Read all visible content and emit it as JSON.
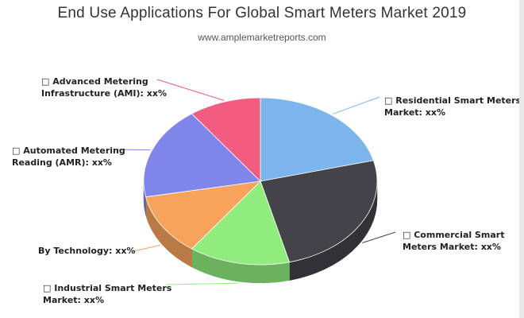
{
  "title": "End Use Applications For Global Smart Meters Market 2019",
  "subtitle": "www.amplemarketreports.com",
  "chart_data": {
    "type": "pie",
    "style": "3d",
    "title": "End Use Applications For Global Smart Meters Market 2019",
    "subtitle": "www.amplemarketreports.com",
    "slices": [
      {
        "name": "Residential Smart Meters Market",
        "label_lines": [
          "□ Residential Smart Meters",
          "Market: xx%"
        ],
        "value": 21,
        "color": "#7cb5ec"
      },
      {
        "name": "Commercial Smart Meters Market",
        "label_lines": [
          "□ Commercial Smart",
          "Meters Market: xx%"
        ],
        "value": 25,
        "color": "#434348"
      },
      {
        "name": "Industrial Smart Meters Market",
        "label_lines": [
          "□ Industrial Smart Meters",
          "Market: xx%"
        ],
        "value": 14,
        "color": "#90ed7d"
      },
      {
        "name": "By Technology",
        "label_lines": [
          "By Technology: xx%"
        ],
        "value": 12,
        "color": "#f7a35c"
      },
      {
        "name": "Automated Metering Reading (AMR)",
        "label_lines": [
          "□ Automated Metering",
          "Reading (AMR): xx%"
        ],
        "value": 18,
        "color": "#8085e9"
      },
      {
        "name": "Advanced Metering Infrastructure (AMI)",
        "label_lines": [
          "□ Advanced Metering",
          "Infrastructure (AMI): xx%"
        ],
        "value": 10,
        "color": "#f15c80"
      }
    ],
    "legend": "none"
  }
}
